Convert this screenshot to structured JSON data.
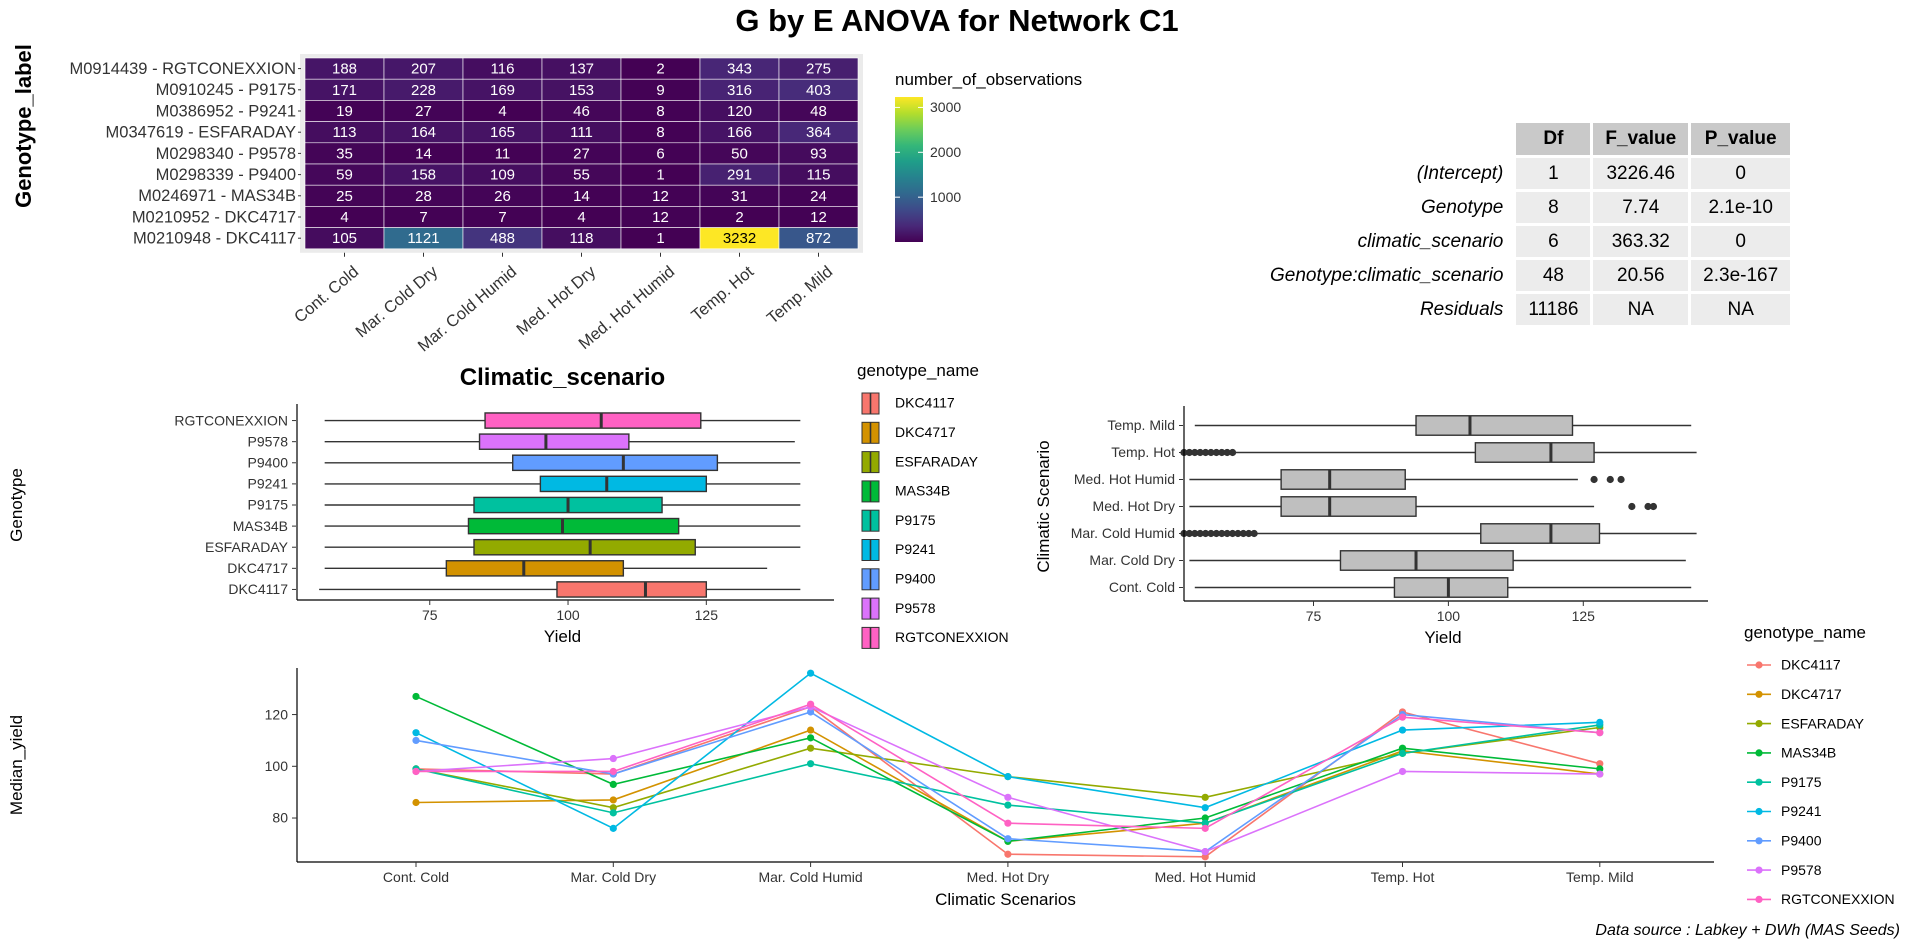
{
  "title": "G by E ANOVA for Network  C1",
  "source_note": "Data source : Labkey + DWh (MAS Seeds)",
  "colors": {
    "DKC4117": "#F8766D",
    "DKC4717": "#D39200",
    "ESFARADAY": "#93AA00",
    "MAS34B": "#00BA38",
    "P9175": "#00C19F",
    "P9241": "#00B9E3",
    "P9400": "#619CFF",
    "P9578": "#DB72FB",
    "RGTCONEXXION": "#FF61C3",
    "grey_box": "#bfbfbf",
    "panel_bg": "#ebebeb"
  },
  "anova": {
    "columns": [
      "Df",
      "F_value",
      "P_value"
    ],
    "rows": [
      {
        "name": "(Intercept)",
        "df": "1",
        "f": "3226.46",
        "p": "0"
      },
      {
        "name": "Genotype",
        "df": "8",
        "f": "7.74",
        "p": "2.1e-10"
      },
      {
        "name": "climatic_scenario",
        "df": "6",
        "f": "363.32",
        "p": "0"
      },
      {
        "name": "Genotype:climatic_scenario",
        "df": "48",
        "f": "20.56",
        "p": "2.3e-167"
      },
      {
        "name": "Residuals",
        "df": "11186",
        "f": "NA",
        "p": "NA"
      }
    ]
  },
  "chart_data": [
    {
      "type": "heatmap",
      "ylabel": "Genotype_label",
      "legend_title": "number_of_observations",
      "legend_ticks": [
        1000,
        2000,
        3000
      ],
      "scale_range": [
        1,
        3232
      ],
      "x_categories": [
        "Cont. Cold",
        "Mar. Cold Dry",
        "Mar. Cold Humid",
        "Med. Hot Dry",
        "Med. Hot Humid",
        "Temp. Hot",
        "Temp. Mild"
      ],
      "y_categories": [
        "M0914439 - RGTCONEXXION",
        "M0910245 - P9175",
        "M0386952 - P9241",
        "M0347619 - ESFARADAY",
        "M0298340 - P9578",
        "M0298339 - P9400",
        "M0246971 - MAS34B",
        "M0210952 - DKC4717",
        "M0210948 - DKC4117"
      ],
      "values": [
        [
          188,
          207,
          116,
          137,
          2,
          343,
          275
        ],
        [
          171,
          228,
          169,
          153,
          9,
          316,
          403
        ],
        [
          19,
          27,
          4,
          46,
          8,
          120,
          48
        ],
        [
          113,
          164,
          165,
          111,
          8,
          166,
          364
        ],
        [
          35,
          14,
          11,
          27,
          6,
          50,
          93
        ],
        [
          59,
          158,
          109,
          55,
          1,
          291,
          115
        ],
        [
          25,
          28,
          26,
          14,
          12,
          31,
          24
        ],
        [
          4,
          7,
          7,
          4,
          12,
          2,
          12
        ],
        [
          105,
          1121,
          488,
          118,
          1,
          3232,
          872
        ]
      ]
    },
    {
      "type": "box",
      "title": "Climatic_scenario",
      "xlabel": "Yield",
      "ylabel": "Genotype",
      "xlim": [
        51,
        147
      ],
      "xticks": [
        75,
        100,
        125
      ],
      "legend_title": "genotype_name",
      "legend": [
        "DKC4117",
        "DKC4717",
        "ESFARADAY",
        "MAS34B",
        "P9175",
        "P9241",
        "P9400",
        "P9578",
        "RGTCONEXXION"
      ],
      "boxes": [
        {
          "name": "DKC4117",
          "whisker_low": 55,
          "q1": 98,
          "median": 114,
          "q3": 125,
          "whisker_high": 142
        },
        {
          "name": "DKC4717",
          "whisker_low": 56,
          "q1": 78,
          "median": 92,
          "q3": 110,
          "whisker_high": 136
        },
        {
          "name": "ESFARADAY",
          "whisker_low": 56,
          "q1": 83,
          "median": 104,
          "q3": 123,
          "whisker_high": 142
        },
        {
          "name": "MAS34B",
          "whisker_low": 56,
          "q1": 82,
          "median": 99,
          "q3": 120,
          "whisker_high": 142
        },
        {
          "name": "P9175",
          "whisker_low": 56,
          "q1": 83,
          "median": 100,
          "q3": 117,
          "whisker_high": 142
        },
        {
          "name": "P9241",
          "whisker_low": 56,
          "q1": 95,
          "median": 107,
          "q3": 125,
          "whisker_high": 142
        },
        {
          "name": "P9400",
          "whisker_low": 56,
          "q1": 90,
          "median": 110,
          "q3": 127,
          "whisker_high": 142
        },
        {
          "name": "P9578",
          "whisker_low": 56,
          "q1": 84,
          "median": 96,
          "q3": 111,
          "whisker_high": 141
        },
        {
          "name": "RGTCONEXXION",
          "whisker_low": 56,
          "q1": 85,
          "median": 106,
          "q3": 124,
          "whisker_high": 142
        }
      ]
    },
    {
      "type": "box",
      "xlabel": "Yield",
      "ylabel": "Climatic Scenario",
      "xlim": [
        51,
        147
      ],
      "xticks": [
        75,
        100,
        125
      ],
      "boxes": [
        {
          "name": "Cont. Cold",
          "whisker_low": 53,
          "q1": 90,
          "median": 100,
          "q3": 111,
          "whisker_high": 145
        },
        {
          "name": "Mar. Cold Dry",
          "whisker_low": 52,
          "q1": 80,
          "median": 94,
          "q3": 112,
          "whisker_high": 144
        },
        {
          "name": "Mar. Cold Humid",
          "whisker_low": 51,
          "q1": 106,
          "median": 119,
          "q3": 128,
          "whisker_high": 146,
          "outliers_low": [
            51,
            52,
            53,
            54,
            55,
            56,
            57,
            58,
            59,
            60,
            61,
            62,
            63,
            64
          ]
        },
        {
          "name": "Med. Hot Dry",
          "whisker_low": 52,
          "q1": 69,
          "median": 78,
          "q3": 94,
          "whisker_high": 127,
          "outliers": [
            134,
            137,
            138
          ]
        },
        {
          "name": "Med. Hot Humid",
          "whisker_low": 52,
          "q1": 69,
          "median": 78,
          "q3": 92,
          "whisker_high": 124,
          "outliers": [
            127,
            130,
            132
          ]
        },
        {
          "name": "Temp. Hot",
          "whisker_low": 51,
          "q1": 105,
          "median": 119,
          "q3": 127,
          "whisker_high": 146,
          "outliers_low": [
            51,
            52,
            53,
            54,
            55,
            56,
            57,
            58,
            59,
            60
          ]
        },
        {
          "name": "Temp. Mild",
          "whisker_low": 53,
          "q1": 94,
          "median": 104,
          "q3": 123,
          "whisker_high": 145
        }
      ]
    },
    {
      "type": "line",
      "xlabel": "Climatic Scenarios",
      "ylabel": "Median_yield",
      "ylim": [
        63,
        138
      ],
      "yticks": [
        80,
        100,
        120
      ],
      "legend_title": "genotype_name",
      "categories": [
        "Cont. Cold",
        "Mar. Cold Dry",
        "Mar. Cold Humid",
        "Med. Hot Dry",
        "Med. Hot Humid",
        "Temp. Hot",
        "Temp. Mild"
      ],
      "series": [
        {
          "name": "DKC4117",
          "values": [
            99,
            97,
            123,
            66,
            65,
            121,
            101
          ]
        },
        {
          "name": "DKC4717",
          "values": [
            86,
            87,
            114,
            71,
            78,
            106,
            97
          ]
        },
        {
          "name": "ESFARADAY",
          "values": [
            99,
            84,
            107,
            96,
            88,
            105,
            115
          ]
        },
        {
          "name": "MAS34B",
          "values": [
            127,
            93,
            111,
            71,
            80,
            107,
            99
          ]
        },
        {
          "name": "P9175",
          "values": [
            99,
            82,
            101,
            85,
            78,
            105,
            116
          ]
        },
        {
          "name": "P9241",
          "values": [
            113,
            76,
            136,
            96,
            84,
            114,
            117
          ]
        },
        {
          "name": "P9400",
          "values": [
            110,
            97,
            121,
            72,
            67,
            120,
            113
          ]
        },
        {
          "name": "P9578",
          "values": [
            98,
            103,
            123,
            88,
            67,
            98,
            97
          ]
        },
        {
          "name": "RGTCONEXXION",
          "values": [
            98,
            98,
            124,
            78,
            76,
            119,
            113
          ]
        }
      ]
    }
  ]
}
